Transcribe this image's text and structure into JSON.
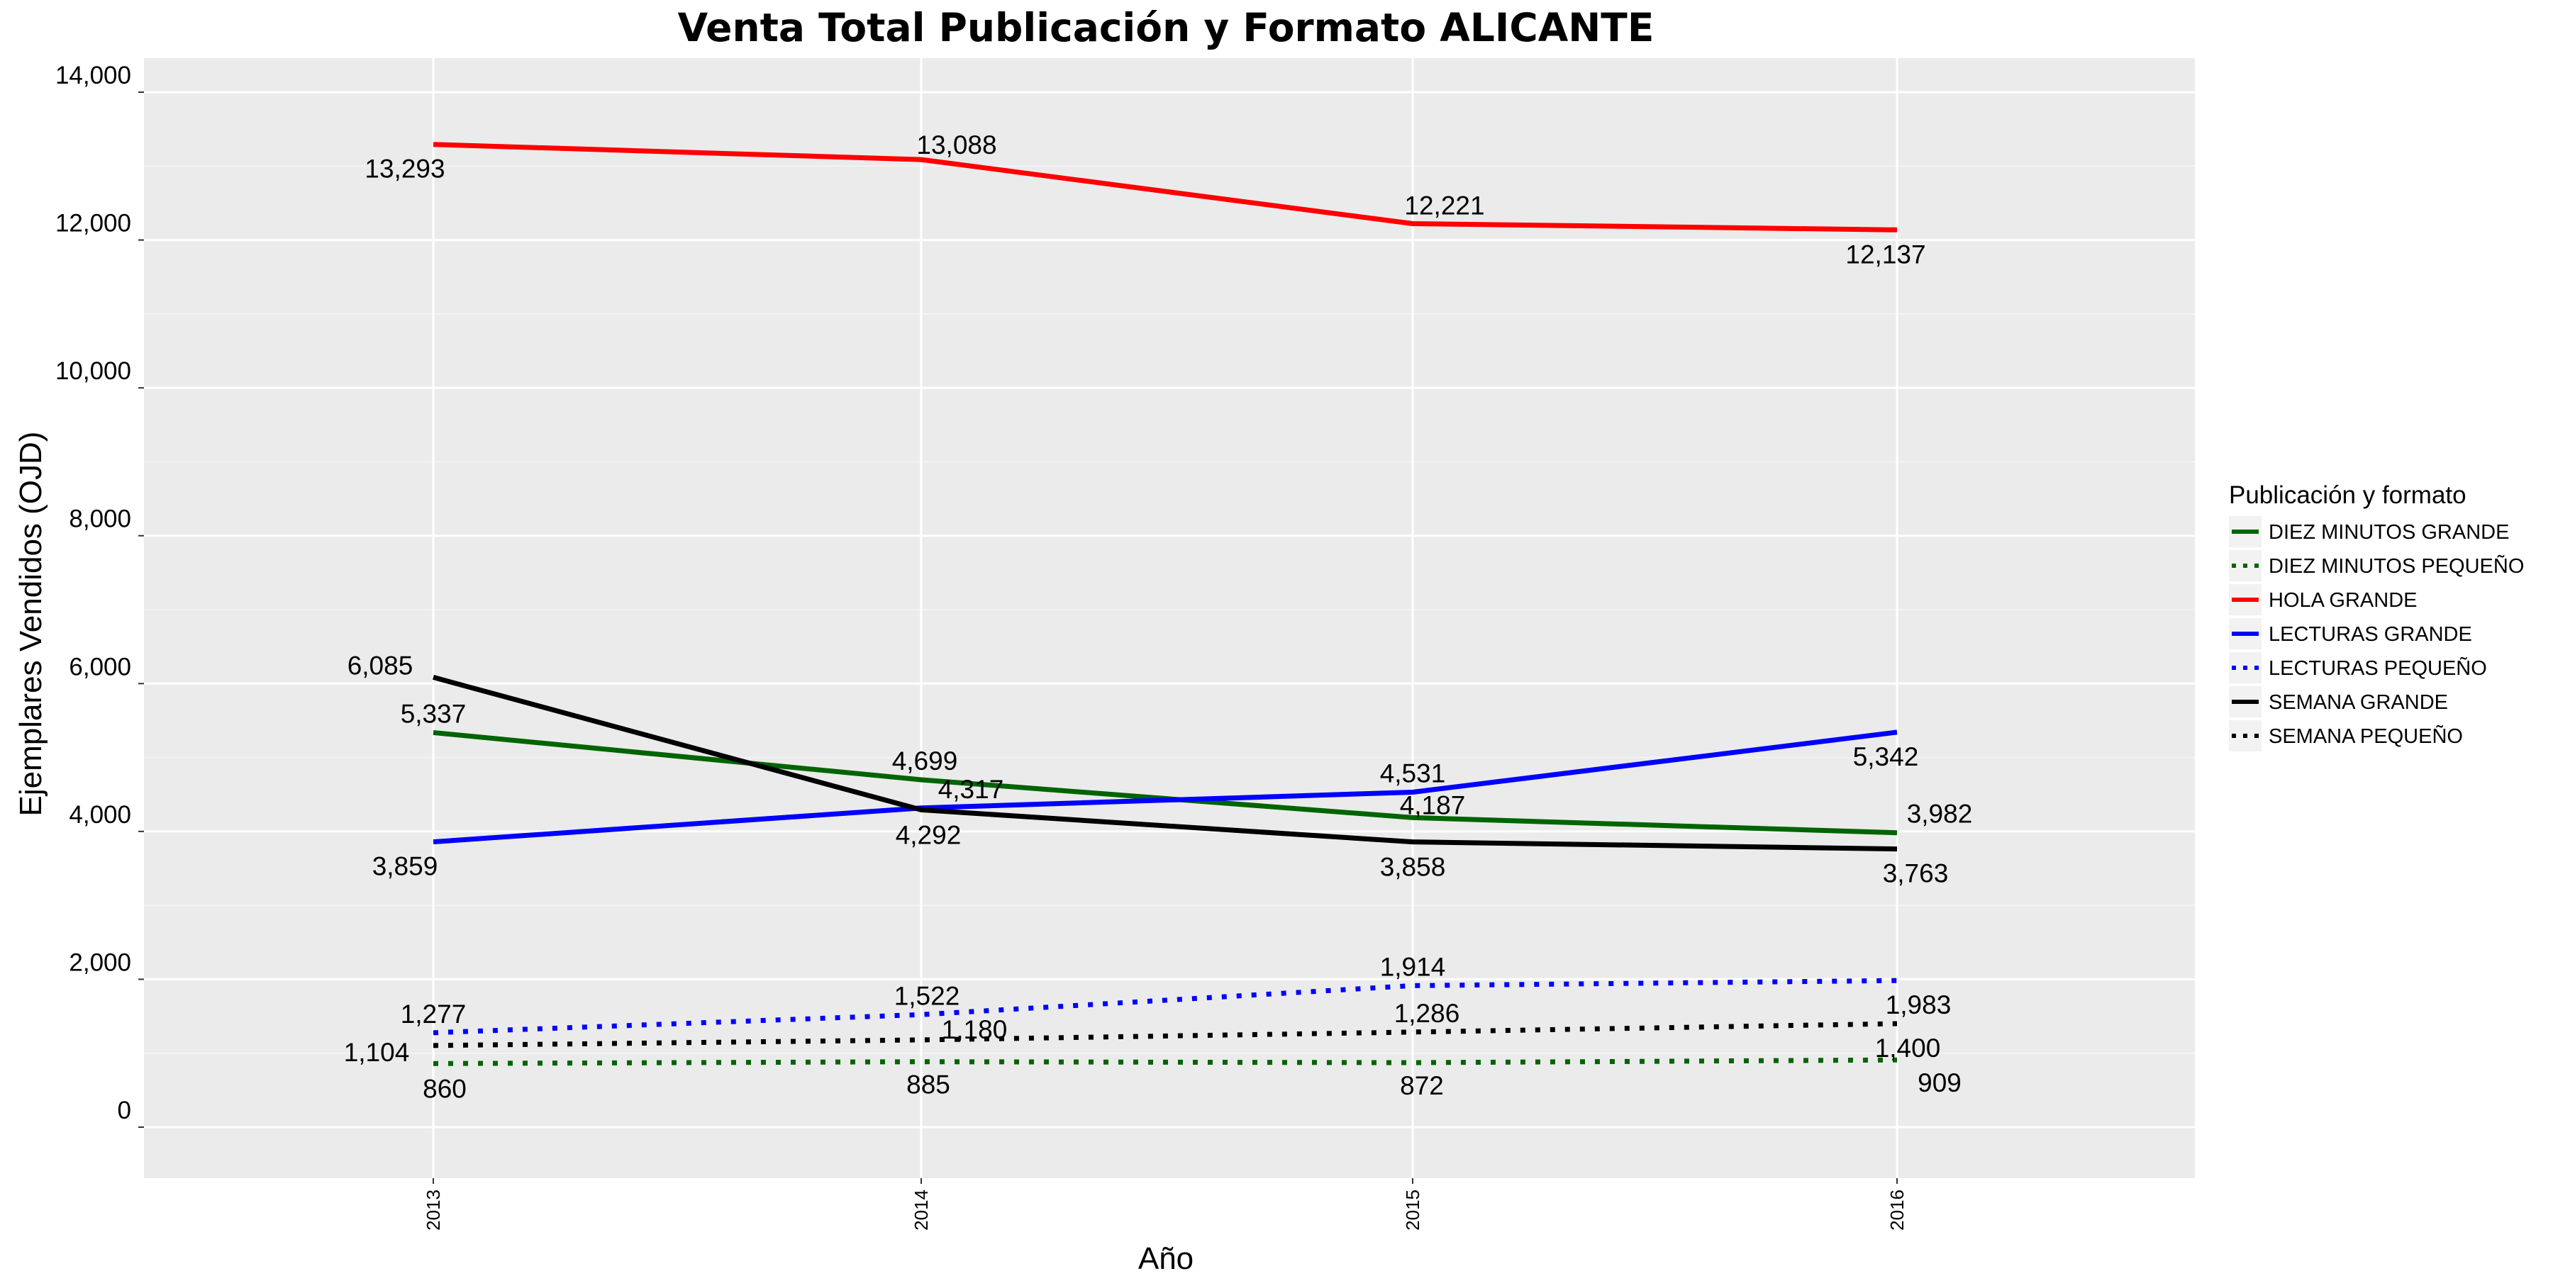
{
  "chart_data": {
    "type": "line",
    "title": "Venta Total Publicación y Formato  ALICANTE",
    "xlabel": "Año",
    "ylabel": "Ejemplares Vendidos (OJD)",
    "x": [
      "2013",
      "2014",
      "2015",
      "2016"
    ],
    "ylim": [
      -700,
      14800
    ],
    "yticks": [
      0,
      2000,
      4000,
      6000,
      8000,
      10000,
      12000,
      14000
    ],
    "ytick_labels": [
      "0",
      "2,000",
      "4,000",
      "6,000",
      "8,000",
      "10,000",
      "12,000",
      "14,000"
    ],
    "grid": true,
    "legend": {
      "title": "Publicación y formato",
      "placement": "right"
    },
    "series": [
      {
        "name": "DIEZ MINUTOS GRANDE",
        "color": "#006400",
        "dash": "solid",
        "values": [
          5337,
          4699,
          4187,
          3982
        ],
        "labels": [
          "5,337",
          "4,699",
          "4,187",
          "3,982"
        ]
      },
      {
        "name": "DIEZ MINUTOS PEQUEÑO",
        "color": "#006400",
        "dash": "dotted",
        "values": [
          860,
          885,
          872,
          909
        ],
        "labels": [
          "860",
          "885",
          "872",
          "909"
        ]
      },
      {
        "name": "HOLA GRANDE",
        "color": "#FF0000",
        "dash": "solid",
        "values": [
          13293,
          13088,
          12221,
          12137
        ],
        "labels": [
          "13,293",
          "13,088",
          "12,221",
          "12,137"
        ]
      },
      {
        "name": "LECTURAS GRANDE",
        "color": "#0000FF",
        "dash": "solid",
        "values": [
          3859,
          4317,
          4531,
          5342
        ],
        "labels": [
          "3,859",
          "4,317",
          "4,531",
          "5,342"
        ]
      },
      {
        "name": "LECTURAS PEQUEÑO",
        "color": "#0000FF",
        "dash": "dotted",
        "values": [
          1277,
          1522,
          1914,
          1983
        ],
        "labels": [
          "1,277",
          "1,522",
          "1,914",
          "1,983"
        ]
      },
      {
        "name": "SEMANA GRANDE",
        "color": "#000000",
        "dash": "solid",
        "values": [
          6085,
          4292,
          3858,
          3763
        ],
        "labels": [
          "6,085",
          "4,292",
          "3,858",
          "3,763"
        ]
      },
      {
        "name": "SEMANA PEQUEÑO",
        "color": "#000000",
        "dash": "dotted",
        "values": [
          1104,
          1180,
          1286,
          1400
        ],
        "labels": [
          "1,104",
          "1,180",
          "1,286",
          "1,400"
        ]
      }
    ]
  }
}
